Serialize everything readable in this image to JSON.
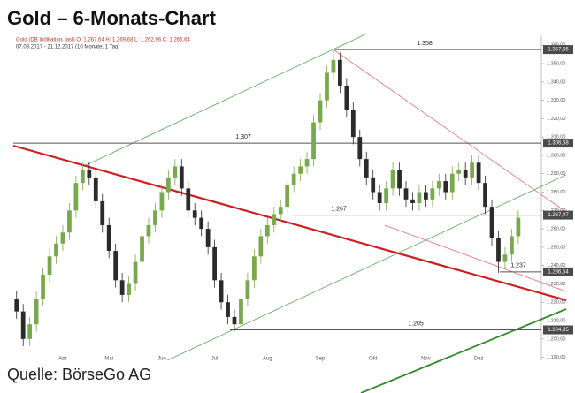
{
  "chart_data": {
    "type": "candlestick",
    "title": "Gold – 6-Monats-Chart",
    "subtitle": "Gold (DB Indikation, last)  O: 1.267,64  H: 1.269,68  L: 1.262,96  C: 1.266,64",
    "date_range": "07.03.2017 - 21.12.2017  (10 Monate, 1 Tag)",
    "source": "Quelle: BörseGo AG",
    "up_color": "#7aa84f",
    "down_color": "#2b2b2b",
    "categories": [
      null,
      null,
      null,
      null,
      null,
      null,
      null,
      "Apr",
      null,
      null,
      null,
      null,
      null,
      null,
      "Mai",
      null,
      null,
      null,
      null,
      null,
      null,
      null,
      "Jun",
      null,
      null,
      null,
      null,
      null,
      null,
      null,
      "Jul",
      null,
      null,
      null,
      null,
      null,
      null,
      null,
      "Aug",
      null,
      null,
      null,
      null,
      null,
      null,
      null,
      "Sep",
      null,
      null,
      null,
      null,
      null,
      null,
      null,
      "Okt",
      null,
      null,
      null,
      null,
      null,
      null,
      null,
      "Nov",
      null,
      null,
      null,
      null,
      null,
      null,
      null,
      "Dez",
      null,
      null,
      null,
      null,
      null,
      null
    ],
    "opens": [
      1222,
      1215,
      1200,
      1208,
      1222,
      1235,
      1245,
      1252,
      1258,
      1270,
      1285,
      1292,
      1288,
      1275,
      1262,
      1248,
      1232,
      1224,
      1230,
      1242,
      1256,
      1262,
      1270,
      1280,
      1288,
      1294,
      1282,
      1270,
      1266,
      1260,
      1250,
      1232,
      1220,
      1212,
      1208,
      1222,
      1232,
      1245,
      1256,
      1262,
      1268,
      1272,
      1284,
      1290,
      1294,
      1298,
      1318,
      1330,
      1345,
      1352,
      1338,
      1325,
      1310,
      1298,
      1288,
      1280,
      1274,
      1282,
      1292,
      1282,
      1276,
      1274,
      1280,
      1276,
      1282,
      1286,
      1280,
      1290,
      1292,
      1288,
      1296,
      1285,
      1272,
      1255,
      1242,
      1246,
      1256
    ],
    "highs": [
      1226,
      1219,
      1212,
      1226,
      1239,
      1249,
      1256,
      1262,
      1274,
      1289,
      1296,
      1296,
      1292,
      1279,
      1266,
      1252,
      1236,
      1234,
      1246,
      1260,
      1266,
      1274,
      1284,
      1292,
      1298,
      1298,
      1286,
      1274,
      1270,
      1264,
      1254,
      1236,
      1224,
      1216,
      1226,
      1236,
      1249,
      1260,
      1266,
      1272,
      1276,
      1288,
      1294,
      1298,
      1302,
      1322,
      1334,
      1349,
      1358,
      1356,
      1342,
      1329,
      1314,
      1302,
      1292,
      1284,
      1286,
      1296,
      1296,
      1286,
      1280,
      1284,
      1284,
      1286,
      1290,
      1290,
      1294,
      1296,
      1296,
      1300,
      1300,
      1289,
      1276,
      1259,
      1250,
      1260,
      1270
    ],
    "lows": [
      1211,
      1196,
      1196,
      1204,
      1218,
      1231,
      1241,
      1248,
      1254,
      1266,
      1281,
      1284,
      1271,
      1258,
      1244,
      1228,
      1220,
      1220,
      1226,
      1238,
      1252,
      1258,
      1266,
      1276,
      1284,
      1278,
      1266,
      1262,
      1256,
      1246,
      1228,
      1216,
      1208,
      1204,
      1204,
      1218,
      1228,
      1241,
      1252,
      1258,
      1264,
      1268,
      1280,
      1286,
      1290,
      1294,
      1314,
      1326,
      1341,
      1334,
      1321,
      1306,
      1294,
      1284,
      1276,
      1270,
      1270,
      1278,
      1278,
      1272,
      1270,
      1270,
      1272,
      1272,
      1278,
      1276,
      1276,
      1286,
      1284,
      1284,
      1281,
      1268,
      1251,
      1236,
      1238,
      1242,
      1252
    ],
    "closes": [
      1215,
      1200,
      1208,
      1222,
      1235,
      1245,
      1252,
      1258,
      1270,
      1285,
      1292,
      1288,
      1275,
      1262,
      1248,
      1232,
      1224,
      1230,
      1242,
      1256,
      1262,
      1270,
      1280,
      1288,
      1294,
      1282,
      1270,
      1266,
      1260,
      1250,
      1232,
      1220,
      1212,
      1208,
      1222,
      1232,
      1245,
      1256,
      1262,
      1268,
      1272,
      1284,
      1290,
      1294,
      1298,
      1318,
      1330,
      1345,
      1352,
      1338,
      1325,
      1310,
      1298,
      1288,
      1280,
      1274,
      1282,
      1292,
      1282,
      1276,
      1274,
      1280,
      1276,
      1282,
      1286,
      1280,
      1290,
      1292,
      1288,
      1296,
      1285,
      1272,
      1255,
      1242,
      1246,
      1256,
      1266
    ],
    "ylim": [
      1185,
      1363
    ],
    "yticks": [
      {
        "value": 1190,
        "label": "1.190,00"
      },
      {
        "value": 1200,
        "label": "1.200,00"
      },
      {
        "value": 1210,
        "label": "1.210,00"
      },
      {
        "value": 1220,
        "label": "1.220,00"
      },
      {
        "value": 1230,
        "label": "1.230,00"
      },
      {
        "value": 1240,
        "label": "1.240,00"
      },
      {
        "value": 1250,
        "label": "1.250,00"
      },
      {
        "value": 1260,
        "label": "1.260,00"
      },
      {
        "value": 1270,
        "label": "1.270,00"
      },
      {
        "value": 1280,
        "label": "1.280,00"
      },
      {
        "value": 1290,
        "label": "1.290,00"
      },
      {
        "value": 1300,
        "label": "1.300,00"
      },
      {
        "value": 1310,
        "label": "1.310,00"
      },
      {
        "value": 1320,
        "label": "1.320,00"
      },
      {
        "value": 1330,
        "label": "1.330,00"
      },
      {
        "value": 1340,
        "label": "1.340,00"
      },
      {
        "value": 1350,
        "label": "1.350,00"
      },
      {
        "value": 1360,
        "label": "1.360,00"
      }
    ],
    "levels": [
      {
        "value": 1357.66,
        "label": "1.358",
        "axis_label": "1.357,66"
      },
      {
        "value": 1306.68,
        "label": "1.307",
        "axis_label": "1.306,68"
      },
      {
        "value": 1267.47,
        "label": "1.267",
        "axis_label": "1.267,47"
      },
      {
        "value": 1236.54,
        "label": "1.237",
        "axis_label": "1.236,54"
      },
      {
        "value": 1204.95,
        "label": "1.205",
        "axis_label": "1.204,95"
      }
    ]
  }
}
